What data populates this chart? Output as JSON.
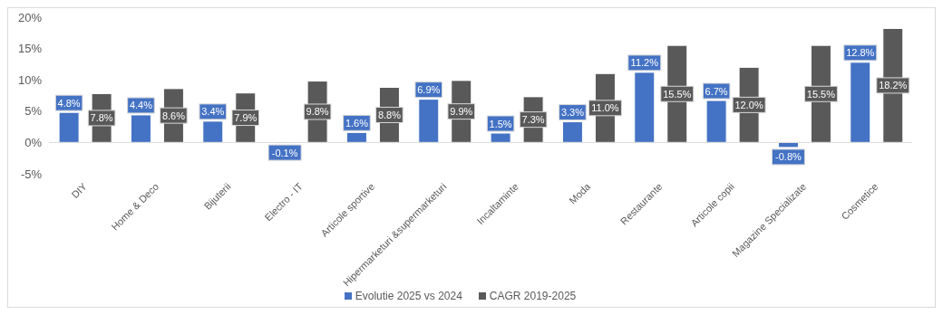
{
  "chart_data": {
    "type": "bar",
    "categories": [
      "DIY",
      "Home & Deco",
      "Bijuterii",
      "Electro - IT",
      "Articole sportive",
      "Hipermarketuri &supermarketuri",
      "Incaltaminte",
      "Moda",
      "Restaurante",
      "Articole copii",
      "Magazine Specializate",
      "Cosmetice"
    ],
    "series": [
      {
        "name": "Evolutie 2025 vs 2024",
        "color": "#4472c4",
        "values": [
          4.8,
          4.4,
          3.4,
          -0.1,
          1.6,
          6.9,
          1.5,
          3.3,
          11.2,
          6.7,
          -0.8,
          12.8
        ],
        "value_labels": [
          "4.8%",
          "4.4%",
          "3.4%",
          "-0.1%",
          "1.6%",
          "6.9%",
          "1.5%",
          "3.3%",
          "11.2%",
          "6.7%",
          "-0.8%",
          "12.8%"
        ]
      },
      {
        "name": "CAGR 2019-2025",
        "color": "#595959",
        "values": [
          7.8,
          8.6,
          7.9,
          9.8,
          8.8,
          9.9,
          7.3,
          11.0,
          15.5,
          12.0,
          15.5,
          18.2
        ],
        "value_labels": [
          "7.8%",
          "8.6%",
          "7.9%",
          "9.8%",
          "8.8%",
          "9.9%",
          "7.3%",
          "11.0%",
          "15.5%",
          "12.0%",
          "15.5%",
          "18.2%"
        ]
      }
    ],
    "ylim": [
      -5,
      20
    ],
    "yticks": [
      {
        "value": -5,
        "label": "-5%"
      },
      {
        "value": 0,
        "label": "0%"
      },
      {
        "value": 5,
        "label": "5%"
      },
      {
        "value": 10,
        "label": "10%"
      },
      {
        "value": 15,
        "label": "15%"
      },
      {
        "value": 20,
        "label": "20%"
      }
    ],
    "ref_lines": [
      {
        "axis": "y",
        "value": 0,
        "color": "#d9d9d9"
      }
    ],
    "grid": false,
    "legend": "bottom"
  }
}
